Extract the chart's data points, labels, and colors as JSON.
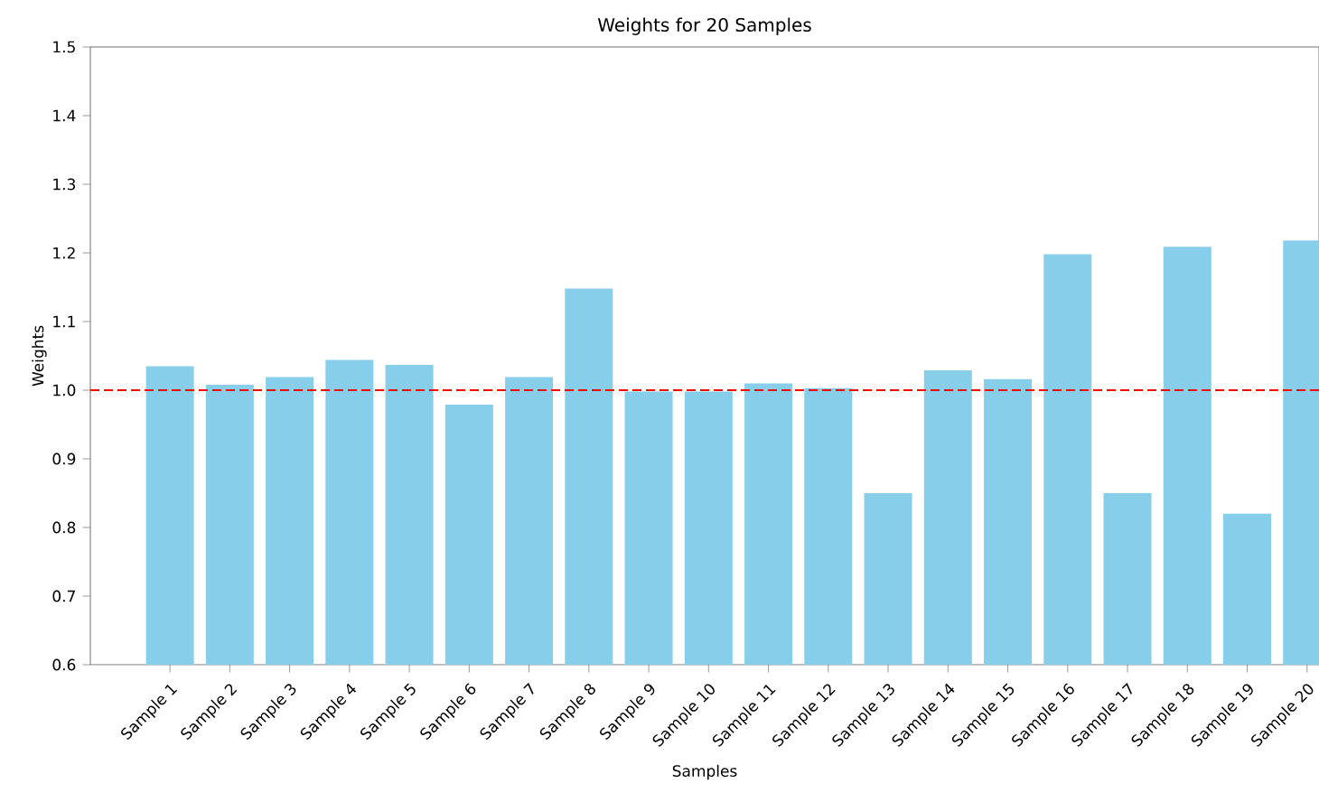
{
  "chart_data": {
    "type": "bar",
    "title": "Weights for 20 Samples",
    "xlabel": "Samples",
    "ylabel": "Weights",
    "categories": [
      "Sample 1",
      "Sample 2",
      "Sample 3",
      "Sample 4",
      "Sample 5",
      "Sample 6",
      "Sample 7",
      "Sample 8",
      "Sample 9",
      "Sample 10",
      "Sample 11",
      "Sample 12",
      "Sample 13",
      "Sample 14",
      "Sample 15",
      "Sample 16",
      "Sample 17",
      "Sample 18",
      "Sample 19",
      "Sample 20"
    ],
    "values": [
      1.035,
      1.008,
      1.019,
      1.044,
      1.037,
      0.979,
      1.019,
      1.148,
      0.998,
      0.998,
      1.01,
      1.003,
      0.85,
      1.029,
      1.016,
      1.198,
      0.85,
      1.209,
      0.82,
      1.218
    ],
    "color": "#87ceeb",
    "ylim": [
      0.6,
      1.5
    ],
    "yticks": [
      0.6,
      0.7,
      0.8,
      0.9,
      {
        "value": 1.0,
        "label": "1.0"
      },
      1.1,
      1.2,
      1.3,
      1.4,
      1.5
    ],
    "ref_lines": [
      {
        "axis": "y",
        "value": 1.0,
        "color": "#ff0000",
        "line_style": "dashed"
      }
    ]
  }
}
